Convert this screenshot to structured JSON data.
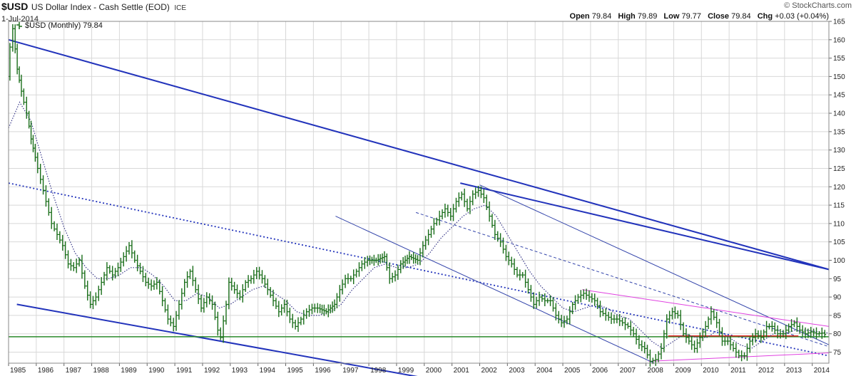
{
  "header": {
    "symbol": "$USD",
    "name": "US Dollar Index - Cash Settle (EOD)",
    "exchange": "ICE",
    "date": "1-Jul-2014",
    "copyright": "© StockCharts.com",
    "ohlc": {
      "open_label": "Open",
      "open": "79.84",
      "high_label": "High",
      "high": "79.89",
      "low_label": "Low",
      "low": "79.77",
      "close_label": "Close",
      "close": "79.84",
      "chg_label": "Chg",
      "chg": "+0.03 (+0.04%)"
    }
  },
  "legend": {
    "label": "$USD (Monthly) 79.84"
  },
  "colors": {
    "price": "#1a6e1a",
    "ma": "#3a3a8a",
    "channel_thick": "#2233bb",
    "channel_thin": "#3344aa",
    "magenta": "#e040e0",
    "support": "#2a8a2a",
    "red_segment": "#dd2222",
    "grid": "#d8d8d8"
  },
  "chart_data": {
    "type": "line",
    "bar_style": "ohlc",
    "period": "monthly",
    "y_axis_side": "right",
    "ylim": [
      72,
      165
    ],
    "x_range": [
      1985.0,
      2014.6
    ],
    "grid": true,
    "x_ticks": [
      "1985",
      "1986",
      "1987",
      "1988",
      "1989",
      "1990",
      "1991",
      "1992",
      "1993",
      "1994",
      "1995",
      "1996",
      "1997",
      "1998",
      "1999",
      "2000",
      "2001",
      "2002",
      "2003",
      "2004",
      "2005",
      "2006",
      "2007",
      "2008",
      "2009",
      "2010",
      "2011",
      "2012",
      "2013",
      "2014"
    ],
    "y_ticks": [
      75,
      80,
      85,
      90,
      95,
      100,
      105,
      110,
      115,
      120,
      125,
      130,
      135,
      140,
      145,
      150,
      155,
      160,
      165
    ],
    "series": [
      {
        "name": "$USD (Monthly)",
        "kind": "price",
        "points": [
          [
            1985.0,
            150
          ],
          [
            1985.1,
            158
          ],
          [
            1985.2,
            163
          ],
          [
            1985.35,
            152
          ],
          [
            1985.5,
            146
          ],
          [
            1985.7,
            140
          ],
          [
            1985.85,
            133
          ],
          [
            1986.0,
            128
          ],
          [
            1986.2,
            122
          ],
          [
            1986.4,
            116
          ],
          [
            1986.6,
            110
          ],
          [
            1986.8,
            107
          ],
          [
            1987.0,
            104
          ],
          [
            1987.2,
            99
          ],
          [
            1987.4,
            98
          ],
          [
            1987.6,
            100
          ],
          [
            1987.8,
            93
          ],
          [
            1988.0,
            88
          ],
          [
            1988.2,
            90
          ],
          [
            1988.4,
            94
          ],
          [
            1988.6,
            98
          ],
          [
            1988.8,
            96
          ],
          [
            1989.0,
            98
          ],
          [
            1989.2,
            101
          ],
          [
            1989.4,
            104
          ],
          [
            1989.6,
            100
          ],
          [
            1989.8,
            97
          ],
          [
            1990.0,
            94
          ],
          [
            1990.2,
            93
          ],
          [
            1990.4,
            94
          ],
          [
            1990.6,
            89
          ],
          [
            1990.8,
            84
          ],
          [
            1991.0,
            82
          ],
          [
            1991.2,
            88
          ],
          [
            1991.4,
            94
          ],
          [
            1991.6,
            97
          ],
          [
            1991.8,
            92
          ],
          [
            1992.0,
            87
          ],
          [
            1992.2,
            90
          ],
          [
            1992.4,
            88
          ],
          [
            1992.6,
            81
          ],
          [
            1992.7,
            79
          ],
          [
            1992.9,
            88
          ],
          [
            1993.0,
            94
          ],
          [
            1993.2,
            92
          ],
          [
            1993.4,
            90
          ],
          [
            1993.6,
            94
          ],
          [
            1993.8,
            95
          ],
          [
            1994.0,
            97
          ],
          [
            1994.2,
            95
          ],
          [
            1994.4,
            92
          ],
          [
            1994.6,
            89
          ],
          [
            1994.8,
            86
          ],
          [
            1995.0,
            88
          ],
          [
            1995.2,
            84
          ],
          [
            1995.4,
            82
          ],
          [
            1995.6,
            84
          ],
          [
            1995.8,
            86
          ],
          [
            1996.0,
            87
          ],
          [
            1996.2,
            87
          ],
          [
            1996.5,
            86
          ],
          [
            1996.8,
            88
          ],
          [
            1997.0,
            92
          ],
          [
            1997.2,
            95
          ],
          [
            1997.4,
            95
          ],
          [
            1997.6,
            97
          ],
          [
            1997.8,
            99
          ],
          [
            1998.0,
            100
          ],
          [
            1998.3,
            100
          ],
          [
            1998.6,
            101
          ],
          [
            1998.8,
            95
          ],
          [
            1999.0,
            96
          ],
          [
            1999.2,
            99
          ],
          [
            1999.5,
            101
          ],
          [
            1999.8,
            100
          ],
          [
            2000.0,
            104
          ],
          [
            2000.2,
            107
          ],
          [
            2000.4,
            110
          ],
          [
            2000.6,
            112
          ],
          [
            2000.8,
            114
          ],
          [
            2001.0,
            112
          ],
          [
            2001.2,
            116
          ],
          [
            2001.4,
            118
          ],
          [
            2001.6,
            114
          ],
          [
            2001.8,
            118
          ],
          [
            2002.0,
            119
          ],
          [
            2002.2,
            117
          ],
          [
            2002.4,
            112
          ],
          [
            2002.6,
            107
          ],
          [
            2002.8,
            105
          ],
          [
            2003.0,
            101
          ],
          [
            2003.2,
            99
          ],
          [
            2003.4,
            96
          ],
          [
            2003.6,
            96
          ],
          [
            2003.8,
            92
          ],
          [
            2004.0,
            88
          ],
          [
            2004.2,
            90
          ],
          [
            2004.4,
            89
          ],
          [
            2004.6,
            89
          ],
          [
            2004.8,
            85
          ],
          [
            2005.0,
            83
          ],
          [
            2005.2,
            84
          ],
          [
            2005.4,
            88
          ],
          [
            2005.6,
            90
          ],
          [
            2005.8,
            91
          ],
          [
            2006.0,
            90
          ],
          [
            2006.2,
            89
          ],
          [
            2006.4,
            86
          ],
          [
            2006.6,
            85
          ],
          [
            2006.8,
            84
          ],
          [
            2007.0,
            84
          ],
          [
            2007.2,
            83
          ],
          [
            2007.4,
            82
          ],
          [
            2007.6,
            80
          ],
          [
            2007.8,
            77
          ],
          [
            2008.0,
            76
          ],
          [
            2008.2,
            72.5
          ],
          [
            2008.4,
            73
          ],
          [
            2008.6,
            76
          ],
          [
            2008.8,
            84
          ],
          [
            2009.0,
            86
          ],
          [
            2009.2,
            85
          ],
          [
            2009.4,
            80
          ],
          [
            2009.6,
            78
          ],
          [
            2009.8,
            76
          ],
          [
            2010.0,
            79
          ],
          [
            2010.2,
            82
          ],
          [
            2010.4,
            86
          ],
          [
            2010.6,
            83
          ],
          [
            2010.8,
            78
          ],
          [
            2011.0,
            78
          ],
          [
            2011.2,
            76
          ],
          [
            2011.4,
            74
          ],
          [
            2011.6,
            74
          ],
          [
            2011.8,
            78
          ],
          [
            2012.0,
            80
          ],
          [
            2012.2,
            79
          ],
          [
            2012.4,
            82
          ],
          [
            2012.6,
            82
          ],
          [
            2012.8,
            80
          ],
          [
            2013.0,
            80
          ],
          [
            2013.2,
            82
          ],
          [
            2013.4,
            83
          ],
          [
            2013.6,
            81
          ],
          [
            2013.8,
            80
          ],
          [
            2014.0,
            80.5
          ],
          [
            2014.2,
            80
          ],
          [
            2014.4,
            80.2
          ],
          [
            2014.5,
            79.84
          ]
        ]
      },
      {
        "kind": "moving_average",
        "style": "dotted",
        "points": [
          [
            1985.0,
            136
          ],
          [
            1985.4,
            143
          ],
          [
            1985.8,
            138
          ],
          [
            1986.2,
            128
          ],
          [
            1986.6,
            118
          ],
          [
            1987.0,
            109
          ],
          [
            1987.4,
            102
          ],
          [
            1987.8,
            98
          ],
          [
            1988.2,
            95
          ],
          [
            1988.6,
            95
          ],
          [
            1989.0,
            96
          ],
          [
            1989.4,
            98
          ],
          [
            1989.8,
            98
          ],
          [
            1990.2,
            96
          ],
          [
            1990.6,
            93
          ],
          [
            1991.0,
            89
          ],
          [
            1991.4,
            89
          ],
          [
            1991.8,
            91
          ],
          [
            1992.2,
            90
          ],
          [
            1992.6,
            87
          ],
          [
            1993.0,
            88
          ],
          [
            1993.4,
            90
          ],
          [
            1993.8,
            92
          ],
          [
            1994.2,
            93
          ],
          [
            1994.6,
            91
          ],
          [
            1995.0,
            89
          ],
          [
            1995.4,
            86
          ],
          [
            1995.8,
            85
          ],
          [
            1996.2,
            85
          ],
          [
            1996.6,
            86
          ],
          [
            1997.0,
            88
          ],
          [
            1997.4,
            92
          ],
          [
            1997.8,
            95
          ],
          [
            1998.2,
            98
          ],
          [
            1998.6,
            99
          ],
          [
            1999.0,
            98
          ],
          [
            1999.4,
            98
          ],
          [
            1999.8,
            99
          ],
          [
            2000.2,
            102
          ],
          [
            2000.6,
            106
          ],
          [
            2001.0,
            109
          ],
          [
            2001.4,
            112
          ],
          [
            2001.8,
            114
          ],
          [
            2002.2,
            115
          ],
          [
            2002.6,
            112
          ],
          [
            2003.0,
            107
          ],
          [
            2003.4,
            102
          ],
          [
            2003.8,
            97
          ],
          [
            2004.2,
            93
          ],
          [
            2004.6,
            90
          ],
          [
            2005.0,
            87
          ],
          [
            2005.4,
            86
          ],
          [
            2005.8,
            87
          ],
          [
            2006.2,
            88
          ],
          [
            2006.6,
            87
          ],
          [
            2007.0,
            85
          ],
          [
            2007.4,
            84
          ],
          [
            2007.8,
            81
          ],
          [
            2008.2,
            78
          ],
          [
            2008.6,
            76
          ],
          [
            2009.0,
            78
          ],
          [
            2009.4,
            80
          ],
          [
            2009.8,
            79
          ],
          [
            2010.2,
            79
          ],
          [
            2010.6,
            81
          ],
          [
            2011.0,
            79
          ],
          [
            2011.4,
            77
          ],
          [
            2011.8,
            76
          ],
          [
            2012.2,
            78
          ],
          [
            2012.6,
            80
          ],
          [
            2013.0,
            80
          ],
          [
            2013.4,
            81
          ],
          [
            2013.8,
            81
          ],
          [
            2014.2,
            80.5
          ],
          [
            2014.6,
            80.2
          ]
        ]
      }
    ],
    "trendlines": [
      {
        "from": [
          1985.0,
          160
        ],
        "to": [
          2014.6,
          97.5
        ],
        "style": "thick"
      },
      {
        "from": [
          2001.3,
          121
        ],
        "to": [
          2014.6,
          97.5
        ],
        "style": "thick"
      },
      {
        "from": [
          1985.3,
          88
        ],
        "to": [
          2000.0,
          68
        ],
        "style": "thick"
      },
      {
        "from": [
          1985.0,
          121
        ],
        "to": [
          2014.6,
          74
        ],
        "style": "dotted"
      },
      {
        "from": [
          1996.8,
          112
        ],
        "to": [
          2008.3,
          72
        ],
        "style": "thin"
      },
      {
        "from": [
          2002.0,
          120.5
        ],
        "to": [
          2014.6,
          77
        ],
        "style": "thin"
      },
      {
        "from": [
          1999.7,
          113
        ],
        "to": [
          2014.6,
          76.5
        ],
        "style": "dashed"
      },
      {
        "from": [
          2005.7,
          92
        ],
        "to": [
          2014.6,
          82
        ],
        "style": "magenta"
      },
      {
        "from": [
          2008.1,
          72.5
        ],
        "to": [
          2014.6,
          74.8
        ],
        "style": "magenta"
      },
      {
        "from": [
          1985.0,
          79.2
        ],
        "to": [
          2014.6,
          79.2
        ],
        "style": "support"
      },
      {
        "from": [
          2008.8,
          79.4
        ],
        "to": [
          2013.5,
          79.4
        ],
        "style": "red"
      }
    ]
  }
}
